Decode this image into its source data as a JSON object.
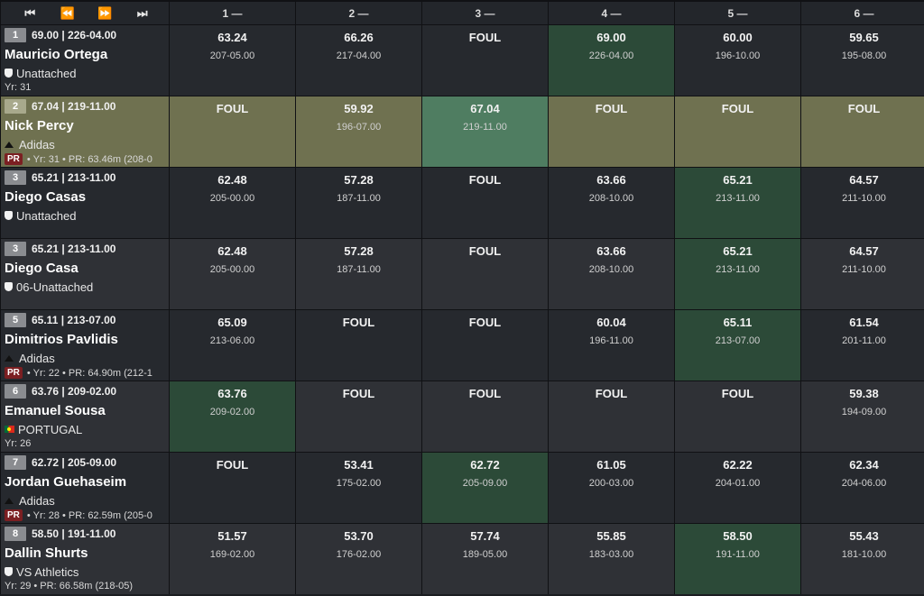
{
  "nav": {
    "first": "⏮",
    "prev": "⏪",
    "next": "⏩",
    "last": "⏭"
  },
  "attempt_headers": [
    "1 —",
    "2 —",
    "3 —",
    "4 —",
    "5 —",
    "6 —"
  ],
  "rows": [
    {
      "rank": "1",
      "best": "69.00 | 226-04.00",
      "name": "Mauricio Ortega",
      "team": "Unattached",
      "team_icon": "shield-icon",
      "meta": "Yr: 31",
      "pr_badge": "",
      "style": "row-dark",
      "attempts": [
        {
          "mark": "63.24",
          "imp": "207-05.00"
        },
        {
          "mark": "66.26",
          "imp": "217-04.00"
        },
        {
          "mark": "FOUL",
          "imp": ""
        },
        {
          "mark": "69.00",
          "imp": "226-04.00",
          "best": true
        },
        {
          "mark": "60.00",
          "imp": "196-10.00"
        },
        {
          "mark": "59.65",
          "imp": "195-08.00"
        }
      ]
    },
    {
      "rank": "2",
      "best": "67.04 | 219-11.00",
      "name": "Nick Percy",
      "team": "Adidas",
      "team_icon": "adidas-icon",
      "meta": "• Yr: 31 • PR: 63.46m (208-0",
      "pr_badge": "PR",
      "style": "row-hi",
      "attempts": [
        {
          "mark": "FOUL",
          "imp": ""
        },
        {
          "mark": "59.92",
          "imp": "196-07.00"
        },
        {
          "mark": "67.04",
          "imp": "219-11.00",
          "best": true
        },
        {
          "mark": "FOUL",
          "imp": ""
        },
        {
          "mark": "FOUL",
          "imp": ""
        },
        {
          "mark": "FOUL",
          "imp": ""
        }
      ]
    },
    {
      "rank": "3",
      "best": "65.21 | 213-11.00",
      "name": "Diego Casas",
      "team": "Unattached",
      "team_icon": "shield-icon",
      "meta": "",
      "pr_badge": "",
      "style": "row-dark",
      "attempts": [
        {
          "mark": "62.48",
          "imp": "205-00.00"
        },
        {
          "mark": "57.28",
          "imp": "187-11.00"
        },
        {
          "mark": "FOUL",
          "imp": ""
        },
        {
          "mark": "63.66",
          "imp": "208-10.00"
        },
        {
          "mark": "65.21",
          "imp": "213-11.00",
          "best": true
        },
        {
          "mark": "64.57",
          "imp": "211-10.00"
        }
      ]
    },
    {
      "rank": "3",
      "best": "65.21 | 213-11.00",
      "name": "Diego Casa",
      "team": "06-Unattached",
      "team_icon": "shield-icon",
      "meta": "",
      "pr_badge": "",
      "style": "row-alt",
      "attempts": [
        {
          "mark": "62.48",
          "imp": "205-00.00"
        },
        {
          "mark": "57.28",
          "imp": "187-11.00"
        },
        {
          "mark": "FOUL",
          "imp": ""
        },
        {
          "mark": "63.66",
          "imp": "208-10.00"
        },
        {
          "mark": "65.21",
          "imp": "213-11.00",
          "best": true
        },
        {
          "mark": "64.57",
          "imp": "211-10.00"
        }
      ]
    },
    {
      "rank": "5",
      "best": "65.11 | 213-07.00",
      "name": "Dimitrios Pavlidis",
      "team": "Adidas",
      "team_icon": "adidas-icon",
      "meta": "• Yr: 22 • PR: 64.90m (212-1",
      "pr_badge": "PR",
      "style": "row-dark",
      "attempts": [
        {
          "mark": "65.09",
          "imp": "213-06.00"
        },
        {
          "mark": "FOUL",
          "imp": ""
        },
        {
          "mark": "FOUL",
          "imp": ""
        },
        {
          "mark": "60.04",
          "imp": "196-11.00"
        },
        {
          "mark": "65.11",
          "imp": "213-07.00",
          "best": true
        },
        {
          "mark": "61.54",
          "imp": "201-11.00"
        }
      ]
    },
    {
      "rank": "6",
      "best": "63.76 | 209-02.00",
      "name": "Emanuel Sousa",
      "team": "PORTUGAL",
      "team_icon": "flag-icon",
      "meta": "Yr: 26",
      "pr_badge": "",
      "style": "row-alt",
      "attempts": [
        {
          "mark": "63.76",
          "imp": "209-02.00",
          "best": true
        },
        {
          "mark": "FOUL",
          "imp": ""
        },
        {
          "mark": "FOUL",
          "imp": ""
        },
        {
          "mark": "FOUL",
          "imp": ""
        },
        {
          "mark": "FOUL",
          "imp": ""
        },
        {
          "mark": "59.38",
          "imp": "194-09.00"
        }
      ]
    },
    {
      "rank": "7",
      "best": "62.72 | 205-09.00",
      "name": "Jordan Guehaseim",
      "team": "Adidas",
      "team_icon": "adidas-icon",
      "meta": "• Yr: 28 • PR: 62.59m (205-0",
      "pr_badge": "PR",
      "style": "row-dark",
      "attempts": [
        {
          "mark": "FOUL",
          "imp": ""
        },
        {
          "mark": "53.41",
          "imp": "175-02.00"
        },
        {
          "mark": "62.72",
          "imp": "205-09.00",
          "best": true
        },
        {
          "mark": "61.05",
          "imp": "200-03.00"
        },
        {
          "mark": "62.22",
          "imp": "204-01.00"
        },
        {
          "mark": "62.34",
          "imp": "204-06.00"
        }
      ]
    },
    {
      "rank": "8",
      "best": "58.50 | 191-11.00",
      "name": "Dallin Shurts",
      "team": "VS Athletics",
      "team_icon": "shield-icon",
      "meta": "Yr: 29 • PR: 66.58m (218-05)",
      "pr_badge": "",
      "style": "row-alt",
      "attempts": [
        {
          "mark": "51.57",
          "imp": "169-02.00"
        },
        {
          "mark": "53.70",
          "imp": "176-02.00"
        },
        {
          "mark": "57.74",
          "imp": "189-05.00"
        },
        {
          "mark": "55.85",
          "imp": "183-03.00"
        },
        {
          "mark": "58.50",
          "imp": "191-11.00",
          "best": true
        },
        {
          "mark": "55.43",
          "imp": "181-10.00"
        }
      ]
    }
  ]
}
